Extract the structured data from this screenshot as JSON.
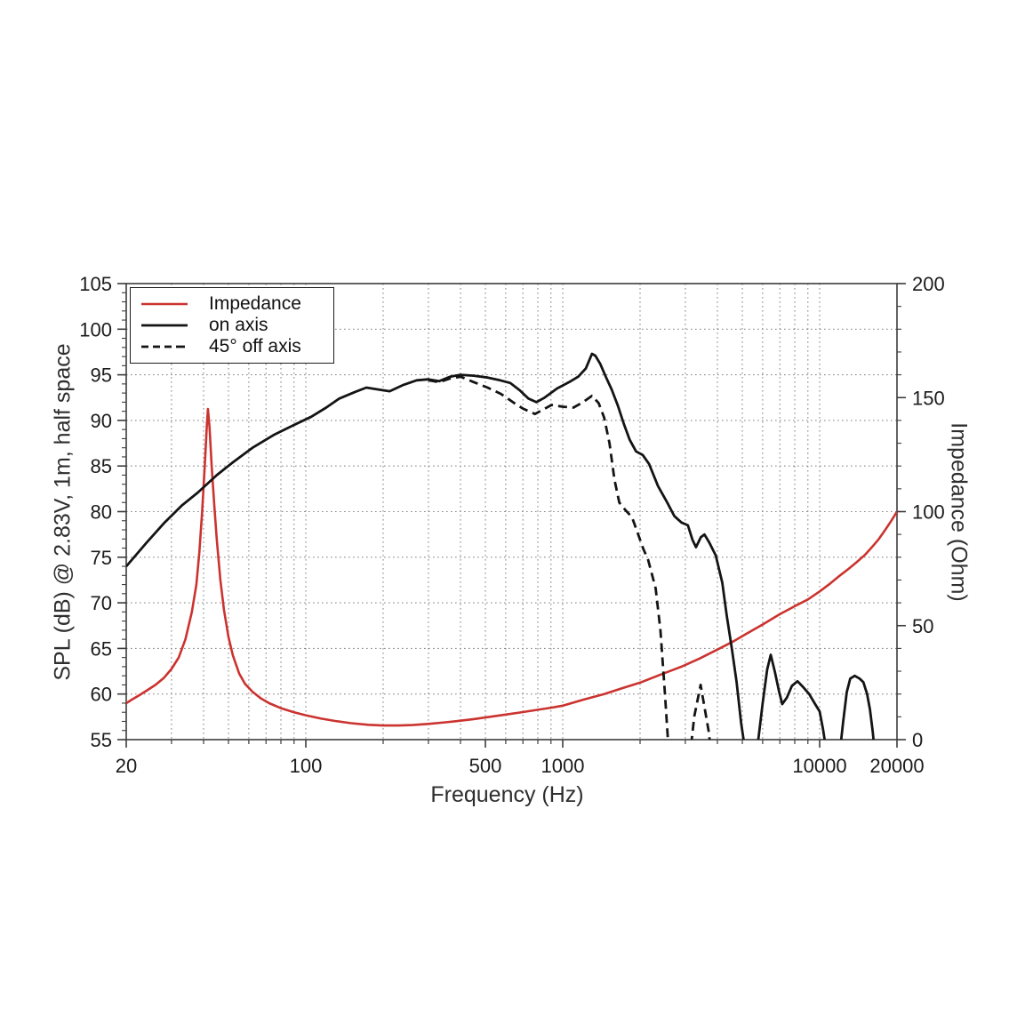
{
  "figure": {
    "background": "#ffffff",
    "frame_color": "#3c3c3c",
    "grid_color": "#8a8a8a"
  },
  "axes": {
    "x": {
      "label": "Frequency (Hz)",
      "scale": "log",
      "min": 20,
      "max": 20000,
      "ticks": [
        {
          "v": 20,
          "t": "20"
        },
        {
          "v": 100,
          "t": "100"
        },
        {
          "v": 500,
          "t": "500"
        },
        {
          "v": 1000,
          "t": "1000"
        },
        {
          "v": 10000,
          "t": "10000"
        },
        {
          "v": 20000,
          "t": "20000"
        }
      ],
      "minor": [
        30,
        40,
        50,
        60,
        70,
        80,
        90,
        200,
        300,
        400,
        600,
        700,
        800,
        900,
        2000,
        3000,
        4000,
        5000,
        6000,
        7000,
        8000,
        9000
      ],
      "gridlines": [
        30,
        40,
        50,
        60,
        70,
        80,
        90,
        100,
        200,
        300,
        400,
        500,
        600,
        700,
        800,
        900,
        1000,
        2000,
        3000,
        4000,
        5000,
        6000,
        7000,
        8000,
        9000,
        10000
      ]
    },
    "y_left": {
      "label": "SPL (dB) @ 2.83V, 1m, half space",
      "min": 55,
      "max": 105,
      "ticks": [
        {
          "v": 55,
          "t": "55"
        },
        {
          "v": 60,
          "t": "60"
        },
        {
          "v": 65,
          "t": "65"
        },
        {
          "v": 70,
          "t": "70"
        },
        {
          "v": 75,
          "t": "75"
        },
        {
          "v": 80,
          "t": "80"
        },
        {
          "v": 85,
          "t": "85"
        },
        {
          "v": 90,
          "t": "90"
        },
        {
          "v": 95,
          "t": "95"
        },
        {
          "v": 100,
          "t": "100"
        },
        {
          "v": 105,
          "t": "105"
        }
      ],
      "minor_step": 1,
      "gridlines": [
        60,
        65,
        70,
        75,
        80,
        85,
        90,
        95,
        100
      ]
    },
    "y_right": {
      "label": "Impedance (Ohm)",
      "min": 0,
      "max": 200,
      "ticks": [
        {
          "v": 0,
          "t": "0"
        },
        {
          "v": 50,
          "t": "50"
        },
        {
          "v": 100,
          "t": "100"
        },
        {
          "v": 150,
          "t": "150"
        },
        {
          "v": 200,
          "t": "200"
        }
      ],
      "minor_step": 10
    }
  },
  "legend": {
    "position": "top-left",
    "items": [
      {
        "label": "Impedance",
        "color": "#cb332f",
        "dash": "solid"
      },
      {
        "label": "on axis",
        "color": "#141414",
        "dash": "solid"
      },
      {
        "label": "45° off axis",
        "color": "#141414",
        "dash": "dashed"
      }
    ]
  },
  "chart_data": {
    "type": "line",
    "title": "",
    "xlabel": "Frequency (Hz)",
    "ylabel_left": "SPL (dB) @ 2.83V, 1m, half space",
    "ylabel_right": "Impedance (Ohm)",
    "x_scale": "log",
    "xlim": [
      20,
      20000
    ],
    "ylim_left": [
      55,
      105
    ],
    "ylim_right": [
      0,
      200
    ],
    "grid": "dotted",
    "legend_position": "top-left",
    "series": [
      {
        "name": "Impedance",
        "axis": "right",
        "unit": "Ohm",
        "color": "#cb332f",
        "style": "solid",
        "width": 2.6,
        "points": [
          [
            20,
            16
          ],
          [
            21,
            17.5
          ],
          [
            22.5,
            19.5
          ],
          [
            24,
            21.5
          ],
          [
            26,
            24
          ],
          [
            28,
            27
          ],
          [
            30,
            31
          ],
          [
            32,
            36
          ],
          [
            34,
            44
          ],
          [
            36,
            56
          ],
          [
            37.5,
            68
          ],
          [
            38.5,
            82
          ],
          [
            39.5,
            100
          ],
          [
            40.5,
            122
          ],
          [
            41.2,
            138
          ],
          [
            41.6,
            145
          ],
          [
            42.2,
            137
          ],
          [
            43,
            120
          ],
          [
            44,
            103
          ],
          [
            45,
            88
          ],
          [
            46.5,
            70
          ],
          [
            48,
            57
          ],
          [
            50,
            45
          ],
          [
            52,
            37
          ],
          [
            55,
            29
          ],
          [
            58,
            24.5
          ],
          [
            62,
            21
          ],
          [
            67,
            18
          ],
          [
            72,
            16
          ],
          [
            80,
            13.8
          ],
          [
            90,
            12
          ],
          [
            100,
            10.7
          ],
          [
            115,
            9.2
          ],
          [
            130,
            8.2
          ],
          [
            150,
            7.2
          ],
          [
            175,
            6.5
          ],
          [
            200,
            6.2
          ],
          [
            230,
            6.2
          ],
          [
            260,
            6.4
          ],
          [
            300,
            6.9
          ],
          [
            350,
            7.6
          ],
          [
            400,
            8.3
          ],
          [
            450,
            9
          ],
          [
            500,
            9.7
          ],
          [
            600,
            11
          ],
          [
            700,
            12.1
          ],
          [
            800,
            13.1
          ],
          [
            900,
            14
          ],
          [
            1000,
            14.9
          ],
          [
            1200,
            17.5
          ],
          [
            1450,
            20
          ],
          [
            1700,
            22.5
          ],
          [
            2000,
            25
          ],
          [
            2400,
            28.5
          ],
          [
            2900,
            32
          ],
          [
            3400,
            35.5
          ],
          [
            4000,
            39.5
          ],
          [
            4600,
            43
          ],
          [
            5200,
            46.5
          ],
          [
            6000,
            50.5
          ],
          [
            7000,
            55
          ],
          [
            8000,
            58.5
          ],
          [
            9000,
            61.5
          ],
          [
            10000,
            65
          ],
          [
            11000,
            68.5
          ],
          [
            12000,
            72
          ],
          [
            13000,
            75
          ],
          [
            14000,
            78
          ],
          [
            15000,
            81
          ],
          [
            16000,
            84.5
          ],
          [
            17000,
            88
          ],
          [
            18000,
            92
          ],
          [
            19000,
            96
          ],
          [
            20000,
            100
          ]
        ]
      },
      {
        "name": "on axis",
        "axis": "left",
        "unit": "dB",
        "color": "#141414",
        "style": "solid",
        "width": 2.8,
        "points": [
          [
            20,
            74
          ],
          [
            24,
            76.6
          ],
          [
            28,
            78.7
          ],
          [
            33,
            80.7
          ],
          [
            38,
            82.1
          ],
          [
            45,
            84
          ],
          [
            52,
            85.4
          ],
          [
            62,
            87
          ],
          [
            75,
            88.4
          ],
          [
            90,
            89.5
          ],
          [
            105,
            90.4
          ],
          [
            120,
            91.4
          ],
          [
            135,
            92.4
          ],
          [
            155,
            93.1
          ],
          [
            172,
            93.6
          ],
          [
            190,
            93.4
          ],
          [
            212,
            93.2
          ],
          [
            240,
            93.9
          ],
          [
            270,
            94.4
          ],
          [
            300,
            94.5
          ],
          [
            330,
            94.3
          ],
          [
            365,
            94.8
          ],
          [
            400,
            95
          ],
          [
            450,
            94.9
          ],
          [
            510,
            94.7
          ],
          [
            570,
            94.4
          ],
          [
            625,
            94.1
          ],
          [
            680,
            93.3
          ],
          [
            735,
            92.4
          ],
          [
            790,
            92
          ],
          [
            850,
            92.5
          ],
          [
            950,
            93.5
          ],
          [
            1060,
            94.2
          ],
          [
            1150,
            94.8
          ],
          [
            1230,
            95.7
          ],
          [
            1300,
            97.3
          ],
          [
            1340,
            97.1
          ],
          [
            1400,
            96.2
          ],
          [
            1470,
            94.8
          ],
          [
            1550,
            93.4
          ],
          [
            1640,
            91.6
          ],
          [
            1730,
            89.6
          ],
          [
            1820,
            87.9
          ],
          [
            1930,
            86.6
          ],
          [
            2050,
            86.2
          ],
          [
            2170,
            85.2
          ],
          [
            2350,
            82.8
          ],
          [
            2550,
            81
          ],
          [
            2720,
            79.5
          ],
          [
            2900,
            78.8
          ],
          [
            3070,
            78.5
          ],
          [
            3200,
            76.9
          ],
          [
            3300,
            76.1
          ],
          [
            3450,
            77.2
          ],
          [
            3560,
            77.5
          ],
          [
            3720,
            76.6
          ],
          [
            3940,
            75.2
          ],
          [
            4180,
            72.2
          ],
          [
            4350,
            68.6
          ],
          [
            4550,
            65
          ],
          [
            4750,
            61.3
          ],
          [
            4950,
            56.8
          ],
          [
            5100,
            54.3
          ],
          [
            5400,
            53
          ],
          [
            5750,
            54.6
          ],
          [
            6000,
            59
          ],
          [
            6250,
            62.7
          ],
          [
            6450,
            64.3
          ],
          [
            6700,
            62.4
          ],
          [
            6950,
            60.3
          ],
          [
            7150,
            58.9
          ],
          [
            7450,
            59.6
          ],
          [
            7800,
            60.9
          ],
          [
            8200,
            61.4
          ],
          [
            8600,
            60.8
          ],
          [
            9100,
            60
          ],
          [
            9600,
            58.9
          ],
          [
            10000,
            58.1
          ],
          [
            10300,
            56.2
          ],
          [
            10550,
            54.3
          ],
          [
            10900,
            52.8
          ],
          [
            11500,
            52.4
          ],
          [
            12000,
            53.8
          ],
          [
            12350,
            57
          ],
          [
            12750,
            60.2
          ],
          [
            13150,
            61.7
          ],
          [
            13700,
            62
          ],
          [
            14300,
            61.7
          ],
          [
            14800,
            61.3
          ],
          [
            15300,
            60
          ],
          [
            15700,
            58.3
          ],
          [
            16100,
            55.8
          ],
          [
            16400,
            53.5
          ]
        ]
      },
      {
        "name": "45° off axis",
        "axis": "left",
        "unit": "dB",
        "color": "#141414",
        "style": "dashed",
        "width": 2.8,
        "points": [
          [
            300,
            94.4
          ],
          [
            330,
            94.2
          ],
          [
            365,
            94.6
          ],
          [
            400,
            94.8
          ],
          [
            450,
            94.2
          ],
          [
            510,
            93.6
          ],
          [
            575,
            92.9
          ],
          [
            640,
            92
          ],
          [
            700,
            91.3
          ],
          [
            780,
            90.7
          ],
          [
            840,
            91.2
          ],
          [
            905,
            91.7
          ],
          [
            1000,
            91.5
          ],
          [
            1100,
            91.4
          ],
          [
            1200,
            92
          ],
          [
            1300,
            92.7
          ],
          [
            1380,
            91.9
          ],
          [
            1450,
            90.3
          ],
          [
            1520,
            87.5
          ],
          [
            1590,
            83.5
          ],
          [
            1660,
            81
          ],
          [
            1750,
            80.2
          ],
          [
            1860,
            79.4
          ],
          [
            1960,
            77.6
          ],
          [
            2060,
            75.9
          ],
          [
            2150,
            74.7
          ],
          [
            2300,
            71.6
          ],
          [
            2400,
            67
          ],
          [
            2500,
            60
          ],
          [
            2580,
            54
          ],
          [
            2650,
            50
          ],
          [
            3060,
            50
          ],
          [
            3150,
            54
          ],
          [
            3250,
            57.5
          ],
          [
            3440,
            61
          ],
          [
            3560,
            58.6
          ],
          [
            3700,
            55.9
          ],
          [
            3800,
            53
          ],
          [
            3850,
            50
          ]
        ]
      }
    ]
  }
}
